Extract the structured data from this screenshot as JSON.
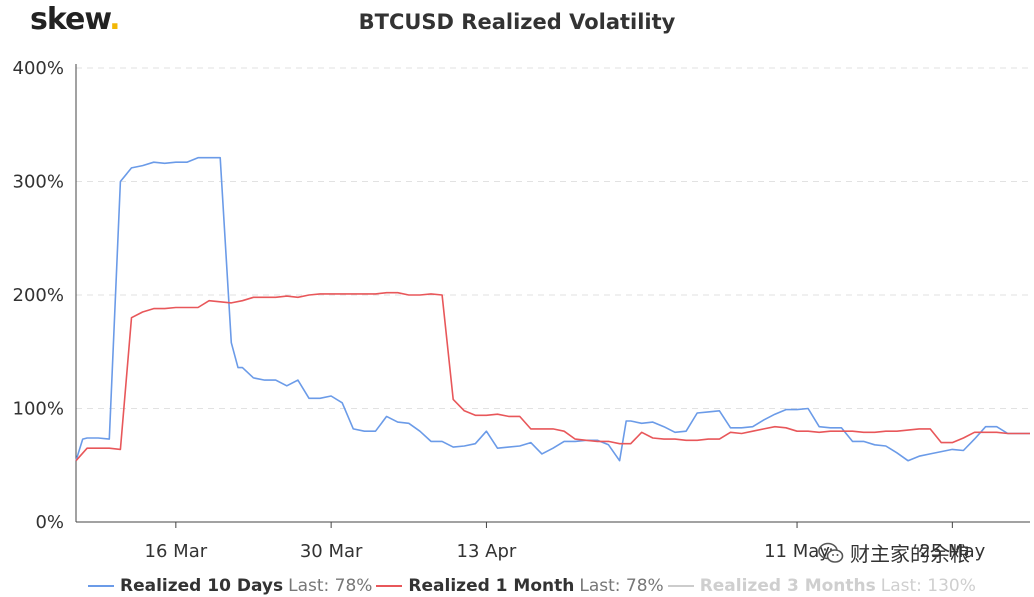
{
  "logo": {
    "text": "skew",
    "dot": "."
  },
  "watermark": {
    "text": "财主家的余粮",
    "icon": "wechat-icon"
  },
  "chart_data": {
    "type": "line",
    "title": "BTCUSD Realized Volatility",
    "y_ticks": [
      "0%",
      "100%",
      "200%",
      "300%",
      "400%"
    ],
    "ylim": [
      0,
      400
    ],
    "x_ticks": [
      {
        "label": "16 Mar",
        "day": 16
      },
      {
        "label": "30 Mar",
        "day": 30
      },
      {
        "label": "13 Apr",
        "day": 44
      },
      {
        "label": "11 May",
        "day": 72
      },
      {
        "label": "25 May",
        "day": 86
      }
    ],
    "xlim": [
      7,
      93
    ],
    "grid": true,
    "legend_placement": "bottom",
    "series": [
      {
        "name": "Realized 10 Days",
        "last_label": "Last: 78%",
        "color": "#6b9be8",
        "visible": true,
        "x": [
          7,
          7.6,
          8,
          9,
          10,
          11,
          12,
          13,
          14,
          15,
          16,
          17,
          18,
          19,
          20,
          21,
          21.6,
          22,
          23,
          24,
          25,
          26,
          27,
          28,
          29,
          30,
          31,
          32,
          33,
          34,
          35,
          36,
          37,
          38,
          39,
          40,
          41,
          42,
          43,
          44,
          45,
          46,
          47,
          48,
          49,
          50,
          51,
          52,
          53,
          54,
          55,
          56,
          56.6,
          57,
          58,
          59,
          60,
          61,
          62,
          63,
          64,
          65,
          66,
          67,
          68,
          69,
          70,
          71,
          72,
          73,
          74,
          75,
          76,
          77,
          78,
          79,
          80,
          81,
          82,
          83,
          84,
          85,
          86,
          87,
          88,
          89,
          90,
          91,
          92,
          93
        ],
        "y": [
          54,
          73,
          74,
          74,
          73,
          300,
          312,
          314,
          317,
          316,
          317,
          317,
          321,
          321,
          321,
          158,
          136,
          136,
          127,
          125,
          125,
          120,
          125,
          109,
          109,
          111,
          105,
          82,
          80,
          80,
          93,
          88,
          87,
          80,
          71,
          71,
          66,
          67,
          69,
          80,
          65,
          66,
          67,
          70,
          60,
          65,
          71,
          71,
          72,
          72,
          68,
          54,
          89,
          89,
          87,
          88,
          84,
          79,
          80,
          96,
          97,
          98,
          83,
          83,
          84,
          90,
          95,
          99,
          99,
          100,
          84,
          83,
          83,
          71,
          71,
          68,
          67,
          61,
          54,
          58,
          60,
          62,
          64,
          63,
          73,
          84,
          84,
          78,
          78,
          78
        ]
      },
      {
        "name": "Realized 1 Month",
        "last_label": "Last: 78%",
        "color": "#e8575a",
        "visible": true,
        "x": [
          7,
          8,
          9,
          10,
          11,
          12,
          13,
          14,
          15,
          16,
          17,
          18,
          19,
          20,
          21,
          22,
          23,
          24,
          25,
          26,
          27,
          28,
          29,
          30,
          31,
          32,
          33,
          34,
          35,
          36,
          37,
          38,
          39,
          40,
          41,
          42,
          43,
          44,
          45,
          46,
          47,
          48,
          49,
          50,
          51,
          52,
          53,
          54,
          55,
          56,
          57,
          58,
          59,
          60,
          61,
          62,
          63,
          64,
          65,
          66,
          67,
          68,
          69,
          70,
          71,
          72,
          73,
          74,
          75,
          76,
          77,
          78,
          79,
          80,
          81,
          82,
          83,
          84,
          85,
          86,
          87,
          88,
          89,
          90,
          91,
          92,
          93
        ],
        "y": [
          54,
          65,
          65,
          65,
          64,
          180,
          185,
          188,
          188,
          189,
          189,
          189,
          195,
          194,
          193,
          195,
          198,
          198,
          198,
          199,
          198,
          200,
          201,
          201,
          201,
          201,
          201,
          201,
          202,
          202,
          200,
          200,
          201,
          200,
          108,
          98,
          94,
          94,
          95,
          93,
          93,
          82,
          82,
          82,
          80,
          73,
          72,
          71,
          71,
          69,
          69,
          79,
          74,
          73,
          73,
          72,
          72,
          73,
          73,
          79,
          78,
          80,
          82,
          84,
          83,
          80,
          80,
          79,
          80,
          80,
          80,
          79,
          79,
          80,
          80,
          81,
          82,
          82,
          70,
          70,
          74,
          79,
          79,
          79,
          78,
          78,
          78
        ]
      },
      {
        "name": "Realized 3 Months",
        "last_label": "Last: 130%",
        "color": "#cccccc",
        "visible": false,
        "x": [],
        "y": []
      }
    ]
  }
}
